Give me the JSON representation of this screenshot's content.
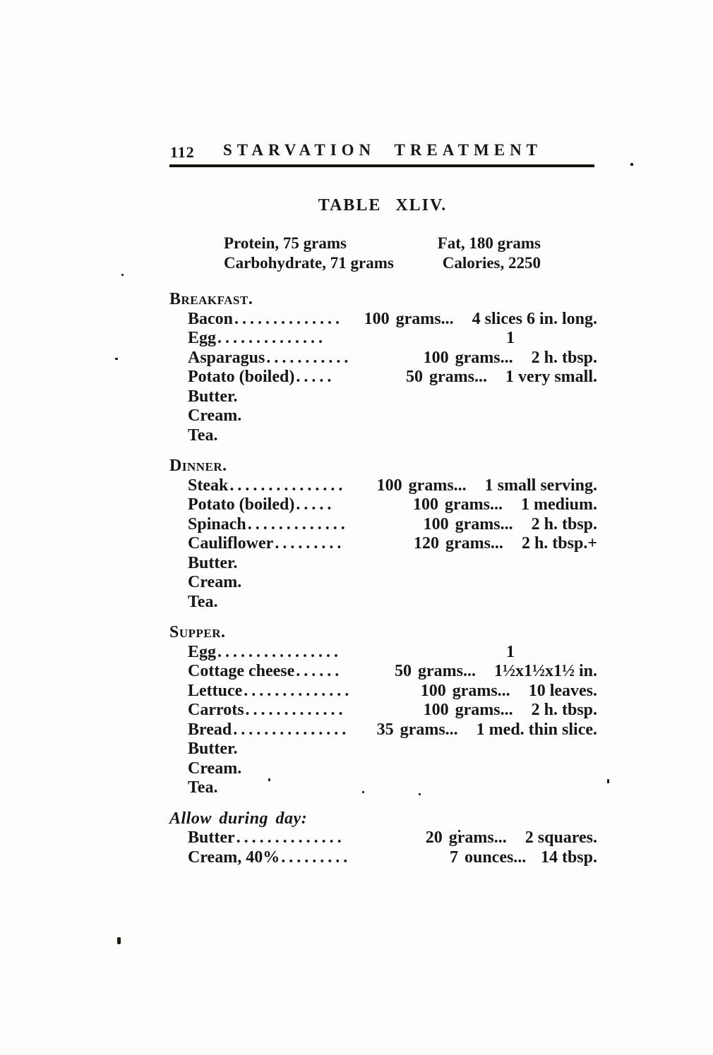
{
  "page": {
    "page_number": "112",
    "running_title": "STARVATION TREATMENT",
    "table_title": "TABLE XLIV.",
    "nutrient_lines": [
      {
        "left": "Protein, 75 grams",
        "right": "Fat, 180 grams"
      },
      {
        "left": "Carbohydrate, 71 grams",
        "right": "Calories, 2250"
      }
    ],
    "sections": [
      {
        "heading": "Breakfast.",
        "rows": [
          {
            "name": "Bacon",
            "dots": "..............",
            "amount": "100",
            "unit": "grams...",
            "desc": "4 slices 6 in. long."
          },
          {
            "name": "Egg",
            "dots": "..............",
            "amount": "1",
            "unit": "",
            "desc": ""
          },
          {
            "name": "Asparagus",
            "dots": "...........",
            "amount": "100",
            "unit": "grams...",
            "desc": "2 h. tbsp."
          },
          {
            "name": "Potato (boiled)",
            "dots": ".....",
            "amount": "50",
            "unit": "grams...",
            "desc": "1 very small."
          },
          {
            "name": "Butter.",
            "dots": "",
            "amount": "",
            "unit": "",
            "desc": ""
          },
          {
            "name": "Cream.",
            "dots": "",
            "amount": "",
            "unit": "",
            "desc": ""
          },
          {
            "name": "Tea.",
            "dots": "",
            "amount": "",
            "unit": "",
            "desc": ""
          }
        ]
      },
      {
        "heading": "Dinner.",
        "rows": [
          {
            "name": "Steak",
            "dots": "...............",
            "amount": "100",
            "unit": "grams...",
            "desc": "1 small serving."
          },
          {
            "name": "Potato (boiled)",
            "dots": ".....",
            "amount": "100",
            "unit": "grams...",
            "desc": "1 medium."
          },
          {
            "name": "Spinach",
            "dots": ".............",
            "amount": "100",
            "unit": "grams...",
            "desc": "2 h. tbsp."
          },
          {
            "name": "Cauliflower",
            "dots": ".........",
            "amount": "120",
            "unit": "grams...",
            "desc": "2 h. tbsp.+"
          },
          {
            "name": "Butter.",
            "dots": "",
            "amount": "",
            "unit": "",
            "desc": ""
          },
          {
            "name": "Cream.",
            "dots": "",
            "amount": "",
            "unit": "",
            "desc": ""
          },
          {
            "name": "Tea.",
            "dots": "",
            "amount": "",
            "unit": "",
            "desc": ""
          }
        ]
      },
      {
        "heading": "Supper.",
        "rows": [
          {
            "name": "Egg",
            "dots": "................",
            "amount": "1",
            "unit": "",
            "desc": ""
          },
          {
            "name": "Cottage cheese",
            "dots": "......",
            "amount": "50",
            "unit": "grams...",
            "desc": "1½x1½x1½ in."
          },
          {
            "name": "Lettuce",
            "dots": "..............",
            "amount": "100",
            "unit": "grams...",
            "desc": "10 leaves."
          },
          {
            "name": "Carrots",
            "dots": ".............",
            "amount": "100",
            "unit": "grams...",
            "desc": "2 h. tbsp."
          },
          {
            "name": "Bread",
            "dots": "...............",
            "amount": "35",
            "unit": "grams...",
            "desc": "1 med. thin slice."
          },
          {
            "name": "Butter.",
            "dots": "",
            "amount": "",
            "unit": "",
            "desc": ""
          },
          {
            "name": "Cream.",
            "dots": "",
            "amount": "",
            "unit": "",
            "desc": ""
          },
          {
            "name": "Tea.",
            "dots": "",
            "amount": "",
            "unit": "",
            "desc": ""
          }
        ]
      },
      {
        "heading": "Allow during day:",
        "rows": [
          {
            "name": "Butter",
            "dots": "..............",
            "amount": "20",
            "unit": "grams...",
            "desc": "2 squares."
          },
          {
            "name": "Cream, 40%",
            "dots": ".........",
            "amount": "7",
            "unit": "ounces...",
            "desc": "14 tbsp."
          }
        ]
      }
    ]
  }
}
